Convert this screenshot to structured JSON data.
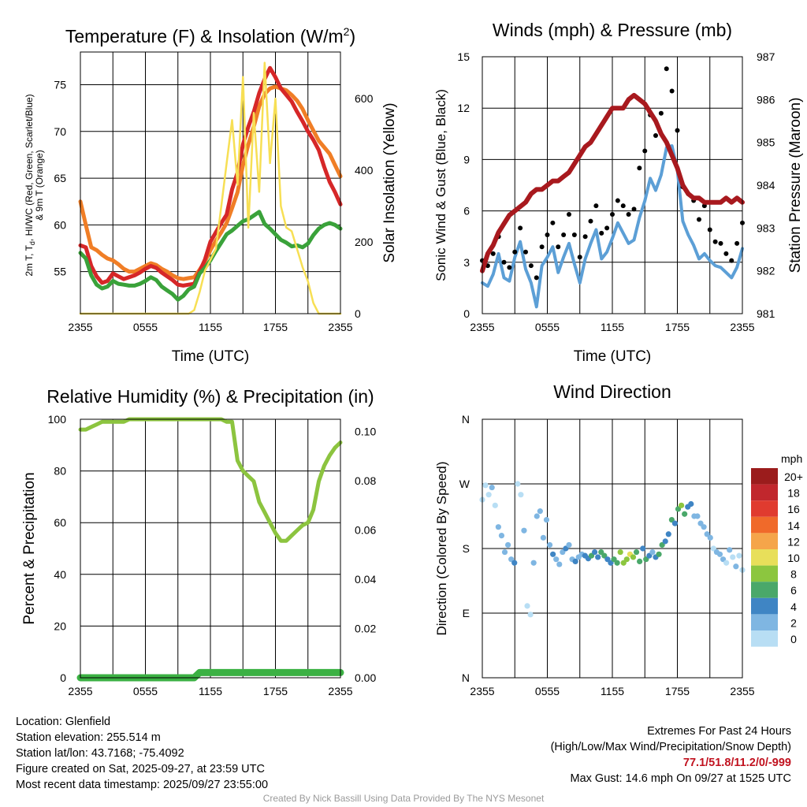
{
  "colors": {
    "temp": "#d62728",
    "dewpoint": "#3aa23a",
    "heat_index": "#f07e26",
    "solar": "#f7df54",
    "sonic_wind": "#5c9fd6",
    "gust": "#000000",
    "pressure": "#a8191e",
    "rh": "#8cc43f",
    "precip": "#3bb143",
    "extremes_text": "#c1121f",
    "credit_text": "#9a9a9a"
  },
  "chart_data": [
    {
      "id": "temp",
      "type": "line",
      "title": "Temperature (F) & Insolation (W/m",
      "title_sup": "2",
      "title_end": ")",
      "xlabel": "Time (UTC)",
      "ylabel_lines": [
        "2m T, T",
        "d",
        ", HI/WC (Red, Green, Scarlet/Blue)",
        "& 9m T (Orange)"
      ],
      "y2label": "Solar Insolation (Yellow)",
      "x_ticks": [
        "2355",
        "0555",
        "1155",
        "1755",
        "2355"
      ],
      "ylim": [
        50.5,
        78.5
      ],
      "y_ticks": [
        55,
        60,
        65,
        70,
        75
      ],
      "y2lim": [
        0,
        730
      ],
      "y2_ticks": [
        0,
        200,
        400,
        600
      ],
      "series": [
        {
          "name": "9m T",
          "color": "#f07e26",
          "axis": "left",
          "values": [
            62.5,
            60,
            57.6,
            57.3,
            56.8,
            56.4,
            56.2,
            55.8,
            55.3,
            55.0,
            55.0,
            55.3,
            55.6,
            55.9,
            55.7,
            55.3,
            55.0,
            54.6,
            54.3,
            54.2,
            54.3,
            54.4,
            55.2,
            56.1,
            57.3,
            58.3,
            59.2,
            60.2,
            61.8,
            63.5,
            66.4,
            68.6,
            70.5,
            72.7,
            74.0,
            74.6,
            74.8,
            74.6,
            74.4,
            73.9,
            73.3,
            72.4,
            71.2,
            70.1,
            69.0,
            68.3,
            67.6,
            66.4,
            65.2
          ]
        },
        {
          "name": "2m T",
          "color": "#d62728",
          "axis": "left",
          "values": [
            57.8,
            57.6,
            55.6,
            54.5,
            53.8,
            54.0,
            54.8,
            54.5,
            54.2,
            54.4,
            54.6,
            54.9,
            55.3,
            55.6,
            55.4,
            54.9,
            54.5,
            54.1,
            53.6,
            53.5,
            53.6,
            53.7,
            55.0,
            56.3,
            58.2,
            59.2,
            60.2,
            61.1,
            63.8,
            65.6,
            68.6,
            70.5,
            72.1,
            74.1,
            75.6,
            76.8,
            75.8,
            74.6,
            73.9,
            73.2,
            72.1,
            71.1,
            70.0,
            69.1,
            68.0,
            66.2,
            64.6,
            63.5,
            62.2
          ]
        },
        {
          "name": "Dewpoint",
          "color": "#3aa23a",
          "axis": "left",
          "values": [
            57.0,
            56.4,
            54.6,
            53.6,
            53.2,
            53.4,
            54.0,
            53.7,
            53.6,
            53.5,
            53.5,
            53.7,
            54.0,
            54.4,
            54.1,
            53.4,
            53.0,
            52.6,
            52.0,
            52.4,
            53.1,
            53.4,
            54.8,
            55.4,
            56.2,
            57.2,
            58.1,
            59.0,
            59.4,
            59.9,
            60.4,
            60.6,
            61.0,
            61.4,
            60.1,
            59.6,
            59.0,
            58.4,
            58.1,
            57.7,
            57.8,
            57.6,
            58.0,
            58.9,
            59.6,
            60.0,
            60.2,
            60.0,
            59.6
          ]
        },
        {
          "name": "Solar Insolation",
          "color": "#f7df54",
          "axis": "right",
          "values": [
            0,
            0,
            0,
            0,
            0,
            0,
            0,
            0,
            0,
            0,
            0,
            0,
            0,
            0,
            0,
            0,
            0,
            0,
            0,
            0,
            0,
            10,
            60,
            120,
            150,
            180,
            300,
            420,
            540,
            360,
            660,
            240,
            560,
            340,
            700,
            420,
            600,
            300,
            240,
            230,
            180,
            130,
            90,
            30,
            0,
            0,
            0,
            0,
            0
          ]
        }
      ]
    },
    {
      "id": "wind",
      "type": "line",
      "title": "Winds (mph) & Pressure (mb)",
      "xlabel": "Time (UTC)",
      "ylabel": "Sonic Wind & Gust (Blue, Black)",
      "y2label": "Station Pressure (Maroon)",
      "x_ticks": [
        "2355",
        "0555",
        "1155",
        "1755",
        "2355"
      ],
      "ylim": [
        0,
        15
      ],
      "y_ticks": [
        0,
        3,
        6,
        9,
        12,
        15
      ],
      "y2lim": [
        981,
        987
      ],
      "y2_ticks": [
        981,
        982,
        983,
        984,
        985,
        986,
        987
      ],
      "series": [
        {
          "name": "Sonic Wind",
          "color": "#5c9fd6",
          "axis": "left",
          "values": [
            1.8,
            1.6,
            2.3,
            3.5,
            2.1,
            1.9,
            3.3,
            4.2,
            2.6,
            1.8,
            0.4,
            2.8,
            3.3,
            3.9,
            2.4,
            3.3,
            4.1,
            2.9,
            1.8,
            3.2,
            4.1,
            4.9,
            3.2,
            3.6,
            4.4,
            5.3,
            4.7,
            4.1,
            4.3,
            5.6,
            6.6,
            7.9,
            7.2,
            8.1,
            9.7,
            9.8,
            8.4,
            5.4,
            4.6,
            4.0,
            3.2,
            3.5,
            3.1,
            2.8,
            2.7,
            2.4,
            2.1,
            2.7,
            3.8
          ]
        },
        {
          "name": "Gust",
          "color": "#000000",
          "axis": "left",
          "values": [
            3.1,
            2.8,
            3.5,
            4.5,
            3.0,
            2.7,
            3.6,
            5.0,
            3.6,
            2.8,
            2.1,
            3.9,
            4.6,
            5.3,
            3.9,
            4.6,
            5.8,
            4.6,
            3.3,
            4.5,
            5.4,
            6.3,
            4.7,
            5.0,
            5.8,
            6.6,
            6.3,
            5.8,
            6.1,
            8.5,
            9.5,
            11.6,
            10.4,
            11.7,
            14.3,
            13.0,
            10.7,
            7.4,
            7.0,
            6.6,
            5.5,
            6.3,
            4.9,
            4.2,
            4.1,
            3.5,
            3.1,
            4.1,
            5.3
          ]
        },
        {
          "name": "Station Pressure",
          "color": "#a8191e",
          "axis": "right",
          "values": [
            982.0,
            982.4,
            982.6,
            982.9,
            983.1,
            983.3,
            983.4,
            983.5,
            983.6,
            983.8,
            983.9,
            983.9,
            984.0,
            984.1,
            984.1,
            984.2,
            984.3,
            984.5,
            984.7,
            984.9,
            985.0,
            985.2,
            985.4,
            985.6,
            985.8,
            985.8,
            985.8,
            986.0,
            986.1,
            986.0,
            985.9,
            985.7,
            985.5,
            985.2,
            985.0,
            984.7,
            984.4,
            984.0,
            983.8,
            983.7,
            983.7,
            983.6,
            983.6,
            983.6,
            983.6,
            983.7,
            983.6,
            983.7,
            983.6
          ]
        }
      ]
    },
    {
      "id": "rh",
      "type": "line",
      "title": "Relative Humidity (%) & Precipitation (in)",
      "xlabel": "",
      "ylabel": "Percent & Precipitation",
      "x_ticks": [
        "2355",
        "0555",
        "1155",
        "1755",
        "2355"
      ],
      "ylim": [
        0,
        100
      ],
      "y_ticks": [
        0,
        20,
        40,
        60,
        80,
        100
      ],
      "y2lim": [
        0,
        0.105
      ],
      "y2_ticks": [
        0.0,
        0.02,
        0.04,
        0.06,
        0.08,
        0.1
      ],
      "series": [
        {
          "name": "Relative Humidity",
          "color": "#8cc43f",
          "axis": "left",
          "values": [
            96,
            96,
            97,
            98,
            99,
            99,
            99,
            99,
            99,
            100,
            100,
            100,
            100,
            100,
            100,
            100,
            100,
            100,
            100,
            100,
            100,
            100,
            100,
            100,
            100,
            100,
            100,
            99,
            99,
            84,
            80,
            78,
            76,
            68,
            64,
            60,
            56,
            53,
            53,
            55,
            57,
            59,
            60,
            65,
            76,
            82,
            86,
            89,
            91
          ]
        },
        {
          "name": "Precipitation",
          "color": "#3bb143",
          "axis": "left",
          "values": [
            0,
            0,
            0,
            0,
            0,
            0,
            0,
            0,
            0,
            0,
            0,
            0,
            0,
            0,
            0,
            0,
            0,
            0,
            0,
            0,
            0,
            0,
            2,
            2,
            2,
            2,
            2,
            2,
            2,
            2,
            2,
            2,
            2,
            2,
            2,
            2,
            2,
            2,
            2,
            2,
            2,
            2,
            2,
            2,
            2,
            2,
            2,
            2,
            2
          ]
        }
      ]
    },
    {
      "id": "dir",
      "type": "scatter",
      "title": "Wind Direction",
      "ylabel": "Direction (Colored By Speed)",
      "x_ticks": [
        "2355",
        "0555",
        "1155",
        "1755",
        "2355"
      ],
      "y_ticks": [
        "N",
        "E",
        "S",
        "W",
        "N"
      ],
      "legend_title": "mph",
      "legend": [
        "20+",
        "18",
        "16",
        "14",
        "12",
        "10",
        "8",
        "6",
        "4",
        "2",
        "0"
      ],
      "legend_colors": [
        "#9b1c1c",
        "#c1272d",
        "#e03b2f",
        "#f06a2a",
        "#f5a54a",
        "#e8df5a",
        "#8cc63f",
        "#4aa86a",
        "#3f85c4",
        "#7fb6e2",
        "#b8def4"
      ],
      "directions": [
        248,
        268,
        255,
        265,
        240,
        210,
        198,
        175,
        185,
        165,
        160,
        270,
        255,
        205,
        100,
        88,
        160,
        225,
        232,
        195,
        220,
        185,
        172,
        165,
        158,
        175,
        180,
        185,
        165,
        162,
        168,
        172,
        170,
        166,
        170,
        175,
        168,
        175,
        170,
        165,
        160,
        165,
        160,
        175,
        160,
        165,
        172,
        168,
        175,
        162,
        180,
        165,
        170,
        175,
        168,
        172,
        185,
        190,
        200,
        220,
        215,
        235,
        240,
        228,
        238,
        242,
        225,
        225,
        215,
        210,
        200,
        195,
        180,
        175,
        172,
        165,
        160,
        178,
        168,
        155,
        170,
        150
      ],
      "speeds": [
        1,
        1,
        1,
        2,
        1,
        2,
        2,
        3,
        2,
        3,
        4,
        1,
        1,
        2,
        1,
        1,
        2,
        3,
        2,
        3,
        2,
        2,
        4,
        3,
        2,
        3,
        4,
        2,
        3,
        4,
        3,
        2,
        4,
        5,
        6,
        4,
        5,
        7,
        6,
        5,
        4,
        6,
        7,
        9,
        8,
        9,
        10,
        8,
        7,
        6,
        5,
        6,
        4,
        3,
        4,
        6,
        7,
        5,
        4,
        6,
        5,
        7,
        8,
        6,
        5,
        4,
        3,
        2,
        3,
        2,
        3,
        2,
        1,
        2,
        3,
        2,
        1,
        2,
        1,
        2,
        1,
        1
      ]
    }
  ],
  "info_left": [
    "Location: Glenfield",
    "Station elevation: 255.514 m",
    "Station lat/lon: 43.7168; -75.4092",
    "Figure created on Sat, 2025-09-27, at 23:59 UTC",
    "Most recent data timestamp: 2025/09/27 23:55:00"
  ],
  "extremes": {
    "title": "Extremes For Past 24 Hours",
    "subtitle": "(High/Low/Max Wind/Precipitation/Snow Depth)",
    "values": "77.1/51.8/11.2/0/-999",
    "max_gust": "Max Gust: 14.6 mph On 09/27 at 1525 UTC"
  },
  "credit": "Created By Nick Bassill Using Data Provided By The NYS Mesonet"
}
